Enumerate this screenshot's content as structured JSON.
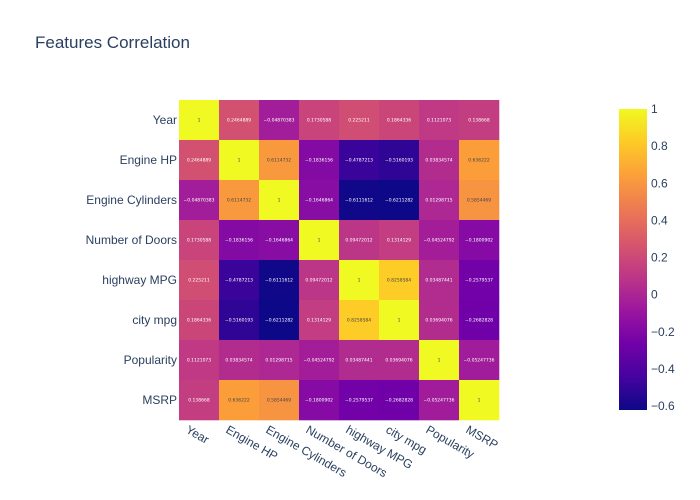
{
  "chart_data": {
    "type": "heatmap",
    "title": "Features Correlation",
    "x": [
      "Year",
      "Engine HP",
      "Engine Cylinders",
      "Number of Doors",
      "highway MPG",
      "city mpg",
      "Popularity",
      "MSRP"
    ],
    "y": [
      "Year",
      "Engine HP",
      "Engine Cylinders",
      "Number of Doors",
      "highway MPG",
      "city mpg",
      "Popularity",
      "MSRP"
    ],
    "z": [
      [
        1,
        0.2464889,
        -0.04870383,
        0.1730588,
        0.225211,
        0.1864336,
        0.1121073,
        0.138668
      ],
      [
        0.2464889,
        1,
        0.6114732,
        -0.1836156,
        -0.4787213,
        -0.5160193,
        0.03834574,
        0.636222
      ],
      [
        -0.04870383,
        0.6114732,
        1,
        -0.1646864,
        -0.6111612,
        -0.6211282,
        0.01298715,
        0.5854469
      ],
      [
        0.1730588,
        -0.1836156,
        -0.1646864,
        1,
        0.09472012,
        0.1314129,
        -0.04524792,
        -0.1800902
      ],
      [
        0.225211,
        -0.4787213,
        -0.6111612,
        0.09472012,
        1,
        0.8258584,
        0.03487441,
        -0.2579537
      ],
      [
        0.1864336,
        -0.5160193,
        -0.6211282,
        0.1314129,
        0.8258584,
        1,
        0.03694076,
        -0.2682828
      ],
      [
        0.1121073,
        0.03834574,
        0.01298715,
        -0.04524792,
        0.03487441,
        0.03694076,
        1,
        -0.05247736
      ],
      [
        0.138668,
        0.636222,
        0.5854469,
        -0.1800902,
        -0.2579537,
        -0.2682828,
        -0.05247736,
        1
      ]
    ],
    "zmin": -0.6211282,
    "zmax": 1,
    "colorscale": [
      "#0d0887",
      "#46039f",
      "#7201a8",
      "#9c179e",
      "#bd3786",
      "#d8576b",
      "#ed7953",
      "#fb9f3a",
      "#fdca26",
      "#f0f921"
    ],
    "colorbar": {
      "ticks": [
        1,
        0.8,
        0.6,
        0.4,
        0.2,
        0,
        -0.2,
        -0.4,
        -0.6
      ],
      "tick_labels": [
        "1",
        "0.8",
        "0.6",
        "0.4",
        "0.2",
        "0",
        "−0.2",
        "−0.4",
        "−0.6"
      ]
    }
  }
}
